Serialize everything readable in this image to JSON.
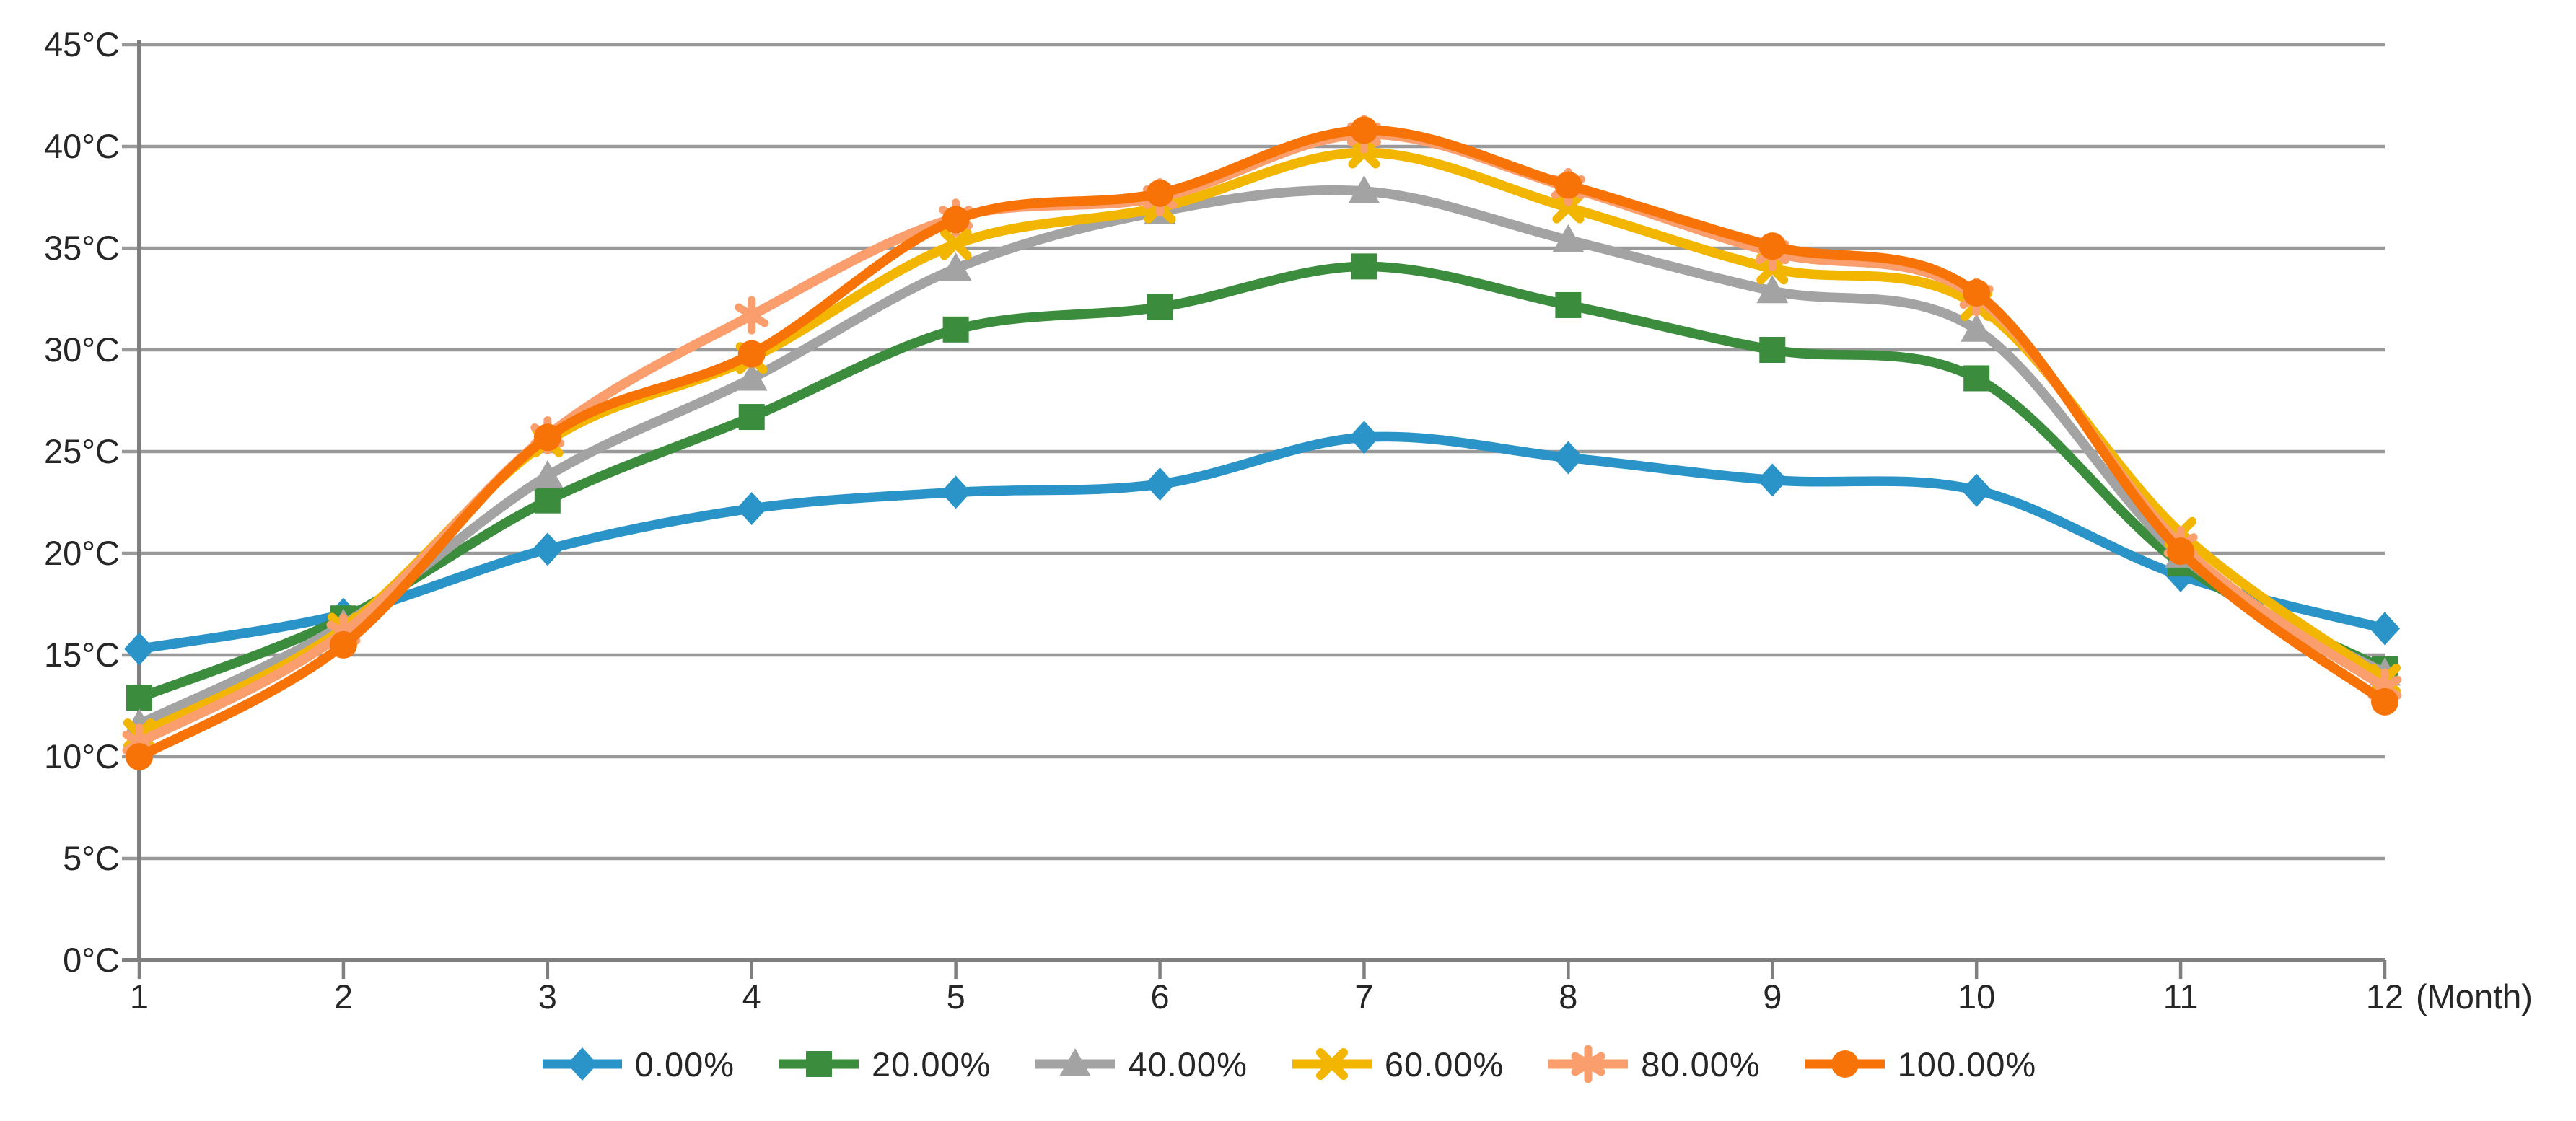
{
  "page": {
    "background": "#ffffff"
  },
  "chart_data": {
    "type": "line",
    "title": "",
    "x": [
      1,
      2,
      3,
      4,
      5,
      6,
      7,
      8,
      9,
      10,
      11,
      12
    ],
    "x_tick_labels": [
      "1",
      "2",
      "3",
      "4",
      "5",
      "6",
      "7",
      "8",
      "9",
      "10",
      "11",
      "12"
    ],
    "x_axis_suffix": "(Month)",
    "y_tick_labels": [
      "0°C",
      "5°C",
      "10°C",
      "15°C",
      "20°C",
      "25°C",
      "30°C",
      "35°C",
      "40°C",
      "45°C"
    ],
    "y_unit": "°C",
    "ylim": [
      0,
      45
    ],
    "ytick_step": 5,
    "grid": true,
    "line_smoothing": true,
    "legend_position": "bottom",
    "axis_color": "#7f7f7f",
    "grid_color": "#999999",
    "text_color": "#262626",
    "series": [
      {
        "name": "0.00%",
        "marker": "diamond",
        "color": "#2a94c8",
        "values": [
          15.3,
          17.0,
          20.2,
          22.2,
          23.0,
          23.4,
          25.7,
          24.7,
          23.6,
          23.1,
          18.9,
          16.3
        ]
      },
      {
        "name": "20.00%",
        "marker": "square",
        "color": "#3b8c3d",
        "values": [
          12.9,
          16.8,
          22.6,
          26.7,
          31.0,
          32.1,
          34.1,
          32.2,
          30.0,
          28.6,
          19.5,
          14.3
        ]
      },
      {
        "name": "40.00%",
        "marker": "triangle",
        "color": "#a3a3a3",
        "values": [
          11.6,
          16.5,
          23.8,
          28.6,
          34.0,
          36.8,
          37.8,
          35.4,
          32.9,
          31.0,
          19.9,
          14.1
        ]
      },
      {
        "name": "60.00%",
        "marker": "x",
        "color": "#f2b600",
        "values": [
          11.1,
          16.3,
          25.5,
          29.6,
          35.2,
          37.0,
          39.7,
          37.0,
          34.0,
          32.2,
          21.0,
          13.8
        ]
      },
      {
        "name": "80.00%",
        "marker": "asterisk",
        "color": "#fa9e6e",
        "values": [
          10.7,
          16.1,
          25.8,
          31.7,
          36.5,
          37.5,
          40.6,
          38.0,
          34.8,
          32.6,
          20.4,
          13.4
        ]
      },
      {
        "name": "100.00%",
        "marker": "circle",
        "color": "#f87307",
        "values": [
          10.0,
          15.5,
          25.7,
          29.8,
          36.4,
          37.7,
          40.8,
          38.1,
          35.1,
          32.8,
          20.1,
          12.7
        ]
      }
    ]
  }
}
